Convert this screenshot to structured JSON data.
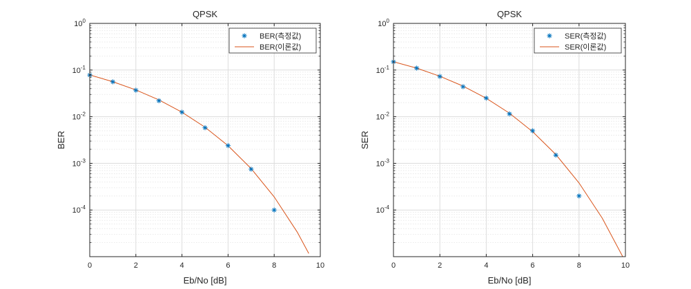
{
  "chart_data": [
    {
      "type": "scatter",
      "title": "QPSK",
      "xlabel": "Eb/No [dB]",
      "ylabel": "BER",
      "y_scale": "log",
      "xlim": [
        0,
        10
      ],
      "ylim": [
        1e-05,
        1
      ],
      "x_ticks": [
        "0",
        "2",
        "4",
        "6",
        "8",
        "10"
      ],
      "y_ticks": [
        {
          "base": "10",
          "exp": "0"
        },
        {
          "base": "10",
          "exp": "-1"
        },
        {
          "base": "10",
          "exp": "-2"
        },
        {
          "base": "10",
          "exp": "-3"
        },
        {
          "base": "10",
          "exp": "-4"
        }
      ],
      "grid": true,
      "legend_position": "top-right",
      "series": [
        {
          "name": "BER(측정값)",
          "style": "markers-asterisk",
          "color": "#0072BD",
          "x": [
            0,
            1,
            2,
            3,
            4,
            5,
            6,
            7,
            8
          ],
          "y": [
            0.078,
            0.056,
            0.037,
            0.022,
            0.0125,
            0.0058,
            0.0024,
            0.00075,
            0.0001
          ]
        },
        {
          "name": "BER(이론값)",
          "style": "line",
          "color": "#D95319",
          "x": [
            0,
            1,
            2,
            3,
            4,
            5,
            6,
            7,
            8,
            9,
            9.5
          ],
          "y": [
            0.0786,
            0.0563,
            0.0375,
            0.0229,
            0.0125,
            0.00595,
            0.00239,
            0.000773,
            0.000191,
            3.36e-05,
            1.17e-05
          ]
        }
      ]
    },
    {
      "type": "scatter",
      "title": "QPSK",
      "xlabel": "Eb/No [dB]",
      "ylabel": "SER",
      "y_scale": "log",
      "xlim": [
        0,
        10
      ],
      "ylim": [
        1e-05,
        1
      ],
      "x_ticks": [
        "0",
        "2",
        "4",
        "6",
        "8",
        "10"
      ],
      "y_ticks": [
        {
          "base": "10",
          "exp": "0"
        },
        {
          "base": "10",
          "exp": "-1"
        },
        {
          "base": "10",
          "exp": "-2"
        },
        {
          "base": "10",
          "exp": "-3"
        },
        {
          "base": "10",
          "exp": "-4"
        }
      ],
      "grid": true,
      "legend_position": "top-right",
      "series": [
        {
          "name": "SER(측정값)",
          "style": "markers-asterisk",
          "color": "#0072BD",
          "x": [
            0,
            1,
            2,
            3,
            4,
            5,
            6,
            7,
            8
          ],
          "y": [
            0.15,
            0.11,
            0.073,
            0.044,
            0.025,
            0.0115,
            0.005,
            0.0015,
            0.0002
          ]
        },
        {
          "name": "SER(이론값)",
          "style": "line",
          "color": "#D95319",
          "x": [
            0,
            1,
            2,
            3,
            4,
            5,
            6,
            7,
            8,
            9,
            10
          ],
          "y": [
            0.151,
            0.11,
            0.0736,
            0.0453,
            0.0248,
            0.0119,
            0.00477,
            0.00155,
            0.00038,
            6.7e-05,
            7.8e-06
          ]
        }
      ]
    }
  ]
}
